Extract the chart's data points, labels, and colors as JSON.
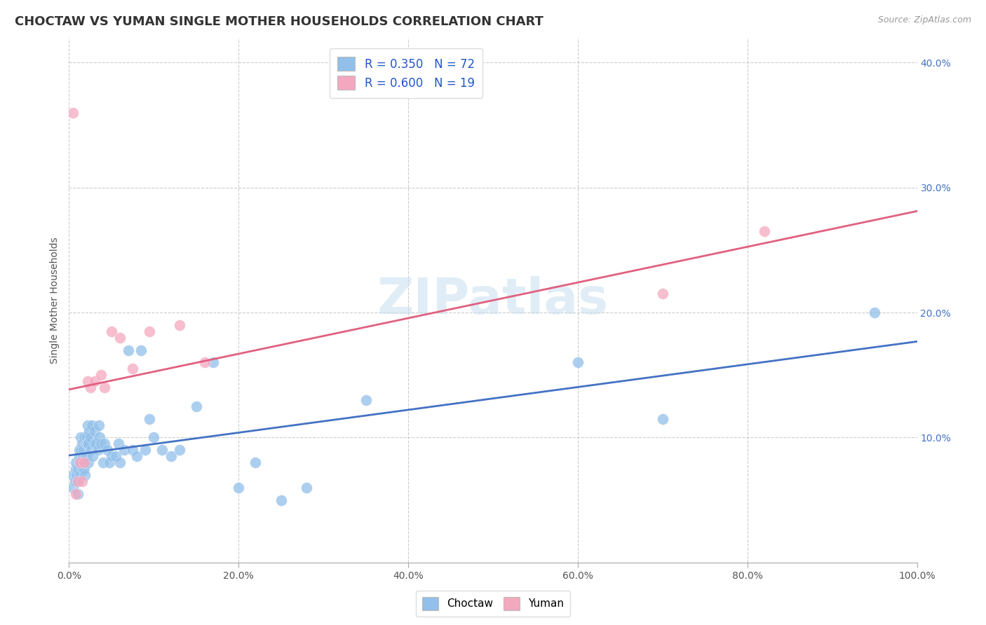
{
  "title": "CHOCTAW VS YUMAN SINGLE MOTHER HOUSEHOLDS CORRELATION CHART",
  "source_text": "Source: ZipAtlas.com",
  "ylabel": "Single Mother Households",
  "xlim": [
    0,
    1.0
  ],
  "ylim": [
    0,
    0.42
  ],
  "xticks": [
    0.0,
    0.2,
    0.4,
    0.6,
    0.8,
    1.0
  ],
  "yticks_right": [
    0.0,
    0.1,
    0.2,
    0.3,
    0.4
  ],
  "xticklabels": [
    "0.0%",
    "20.0%",
    "40.0%",
    "60.0%",
    "80.0%",
    "100.0%"
  ],
  "yticklabels_right": [
    "",
    "10.0%",
    "20.0%",
    "30.0%",
    "40.0%"
  ],
  "legend_labels": [
    "Choctaw",
    "Yuman"
  ],
  "choctaw_color": "#92C0EA",
  "yuman_color": "#F4A8BF",
  "choctaw_line_color": "#4472C4",
  "yuman_line_color": "#E06080",
  "watermark_text": "ZIPatlas",
  "choctaw_R": 0.35,
  "choctaw_N": 72,
  "yuman_R": 0.6,
  "yuman_N": 19,
  "choctaw_x": [
    0.005,
    0.005,
    0.007,
    0.008,
    0.008,
    0.009,
    0.01,
    0.01,
    0.01,
    0.012,
    0.012,
    0.013,
    0.013,
    0.014,
    0.014,
    0.015,
    0.015,
    0.016,
    0.016,
    0.017,
    0.018,
    0.018,
    0.019,
    0.019,
    0.02,
    0.02,
    0.021,
    0.022,
    0.022,
    0.023,
    0.023,
    0.024,
    0.025,
    0.026,
    0.027,
    0.028,
    0.03,
    0.03,
    0.032,
    0.034,
    0.035,
    0.036,
    0.038,
    0.04,
    0.042,
    0.045,
    0.048,
    0.05,
    0.055,
    0.058,
    0.06,
    0.065,
    0.07,
    0.075,
    0.08,
    0.085,
    0.09,
    0.095,
    0.1,
    0.11,
    0.12,
    0.13,
    0.15,
    0.17,
    0.2,
    0.22,
    0.25,
    0.28,
    0.35,
    0.6,
    0.7,
    0.95
  ],
  "choctaw_y": [
    0.07,
    0.06,
    0.065,
    0.075,
    0.08,
    0.07,
    0.065,
    0.055,
    0.075,
    0.085,
    0.09,
    0.08,
    0.07,
    0.09,
    0.1,
    0.095,
    0.08,
    0.085,
    0.075,
    0.09,
    0.1,
    0.075,
    0.08,
    0.07,
    0.095,
    0.085,
    0.1,
    0.11,
    0.095,
    0.095,
    0.08,
    0.105,
    0.1,
    0.09,
    0.11,
    0.085,
    0.095,
    0.105,
    0.095,
    0.09,
    0.11,
    0.1,
    0.095,
    0.08,
    0.095,
    0.09,
    0.08,
    0.085,
    0.085,
    0.095,
    0.08,
    0.09,
    0.17,
    0.09,
    0.085,
    0.17,
    0.09,
    0.115,
    0.1,
    0.09,
    0.085,
    0.09,
    0.125,
    0.16,
    0.06,
    0.08,
    0.05,
    0.06,
    0.13,
    0.16,
    0.115,
    0.2
  ],
  "yuman_x": [
    0.005,
    0.008,
    0.01,
    0.013,
    0.015,
    0.018,
    0.022,
    0.025,
    0.03,
    0.038,
    0.042,
    0.05,
    0.06,
    0.075,
    0.095,
    0.13,
    0.16,
    0.7,
    0.82
  ],
  "yuman_y": [
    0.36,
    0.055,
    0.065,
    0.08,
    0.065,
    0.08,
    0.145,
    0.14,
    0.145,
    0.15,
    0.14,
    0.185,
    0.18,
    0.155,
    0.185,
    0.19,
    0.16,
    0.215,
    0.265
  ]
}
